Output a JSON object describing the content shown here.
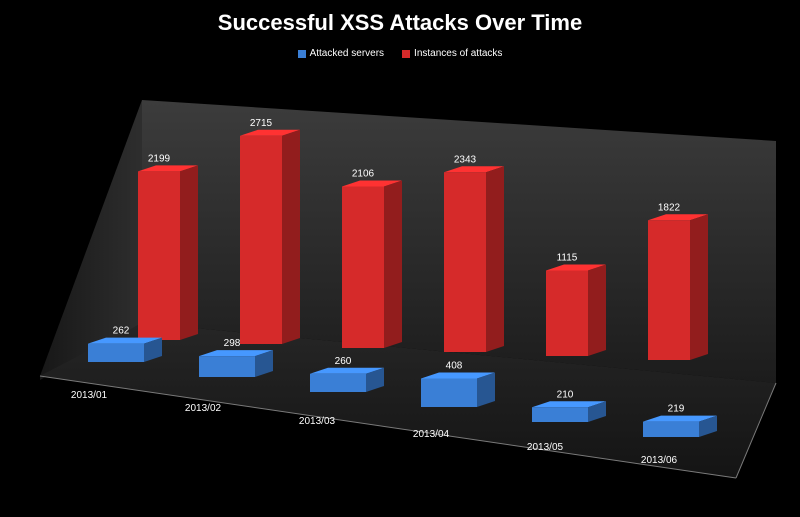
{
  "chart_data": {
    "type": "bar",
    "title": "Successful XSS Attacks Over Time",
    "categories": [
      "2013/01",
      "2013/02",
      "2013/03",
      "2013/04",
      "2013/05",
      "2013/06"
    ],
    "series": [
      {
        "name": "Attacked servers",
        "color": "#3a7fd6",
        "values": [
          262,
          298,
          260,
          408,
          210,
          219
        ]
      },
      {
        "name": "Instances of attacks",
        "color": "#d62a2a",
        "values": [
          2199,
          2715,
          2106,
          2343,
          1115,
          1822
        ]
      }
    ],
    "xlabel": "",
    "ylabel": "",
    "ylim": [
      0,
      3000
    ],
    "grid": false,
    "legend_position": "top",
    "style": "3d-column"
  }
}
